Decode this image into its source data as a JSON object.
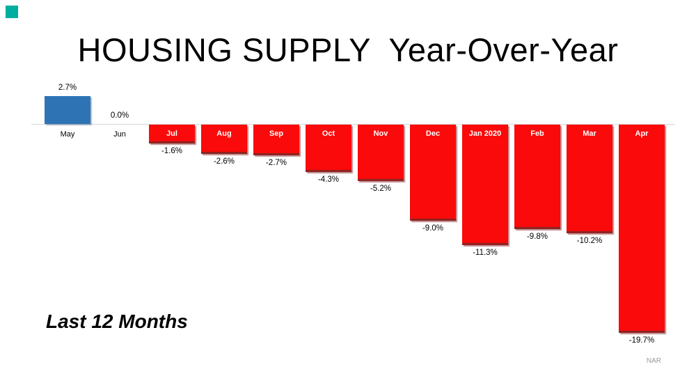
{
  "title": "HOUSING SUPPLY  Year-Over-Year",
  "footer_note": "Last 12 Months",
  "source": "NAR",
  "chart_data": {
    "type": "bar",
    "title": "HOUSING SUPPLY  Year-Over-Year",
    "categories": [
      "May",
      "Jun",
      "Jul",
      "Aug",
      "Sep",
      "Oct",
      "Nov",
      "Dec",
      "Jan 2020",
      "Feb",
      "Mar",
      "Apr"
    ],
    "values": [
      2.7,
      0.0,
      -1.6,
      -2.6,
      -2.7,
      -4.3,
      -5.2,
      -9.0,
      -11.3,
      -9.8,
      -10.2,
      -19.7
    ],
    "labels": [
      "2.7%",
      "0.0%",
      "-1.6%",
      "-2.6%",
      "-2.7%",
      "-4.3%",
      "-5.2%",
      "-9.0%",
      "-11.3%",
      "-9.8%",
      "-10.2%",
      "-19.7%"
    ],
    "value_suffix": "%",
    "xlabel": "",
    "ylabel": "",
    "ylim": [
      -20,
      3
    ],
    "grid": false,
    "legend": false,
    "positive_color": "#2e74b5",
    "negative_color": "#fa0a0a",
    "annotation": "Last 12 Months",
    "source": "NAR"
  }
}
